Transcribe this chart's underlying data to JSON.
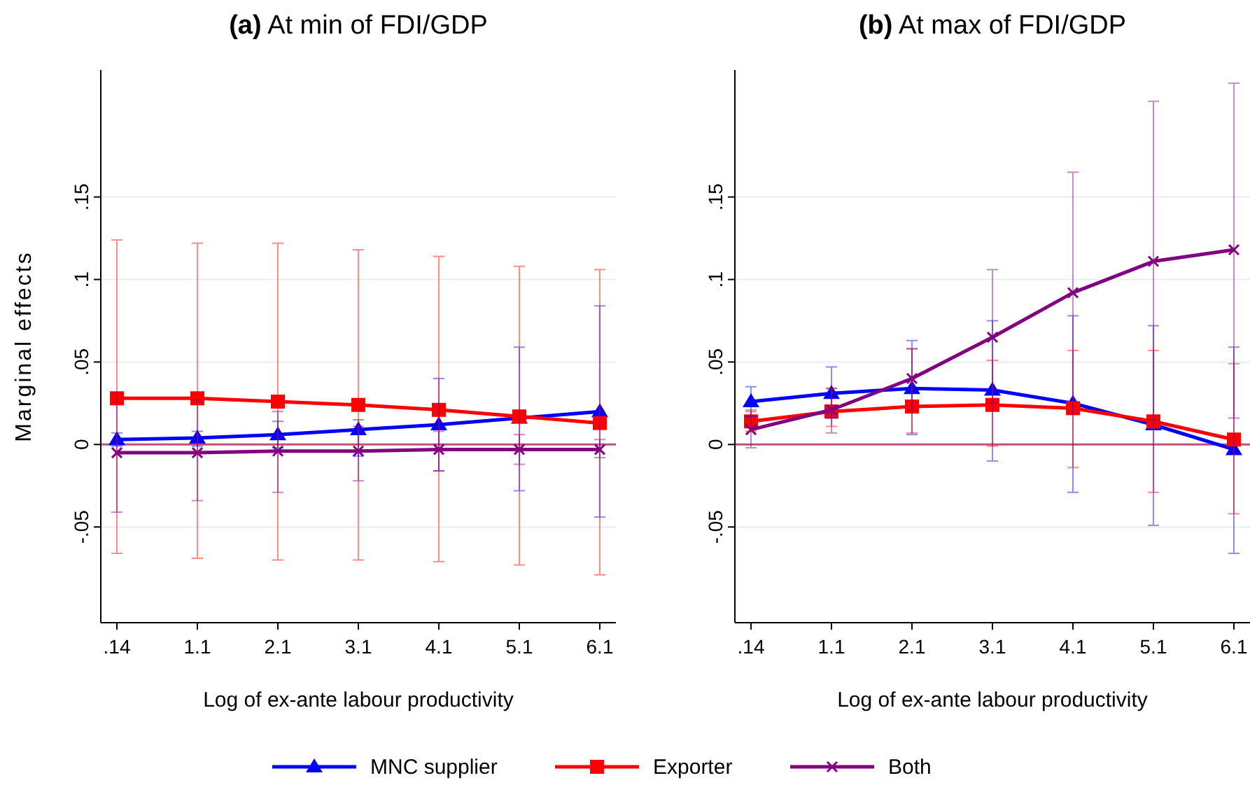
{
  "chart_data": [
    {
      "type": "line",
      "title": "(a) At min of FDI/GDP",
      "xlabel": "Log of ex-ante labour productivity",
      "ylabel": "Marginal effects",
      "categories": [
        ".14",
        "1.1",
        "2.1",
        "3.1",
        "4.1",
        "5.1",
        "6.1"
      ],
      "ylim": [
        -0.108,
        0.227
      ],
      "yticks": [
        {
          "value": -0.05,
          "label": "-.05"
        },
        0,
        {
          "value": 0.05,
          "label": ".05"
        },
        {
          "value": 0.1,
          "label": ".1"
        },
        {
          "value": 0.15,
          "label": ".15"
        }
      ],
      "grid": "y",
      "legend": "bottom",
      "ref_lines": [
        {
          "axis": "y",
          "value": 0,
          "color": "#c0507a"
        }
      ],
      "series": [
        {
          "name": "MNC supplier",
          "color": "#0000ff",
          "marker": "triangle",
          "values": [
            0.003,
            0.004,
            0.006,
            0.009,
            0.012,
            0.016,
            0.02
          ],
          "errors": [
            [
              -0.001,
              0.007
            ],
            [
              -0.001,
              0.008
            ],
            [
              -0.002,
              0.014
            ],
            [
              -0.007,
              0.015
            ],
            [
              -0.016,
              0.04
            ],
            [
              -0.028,
              0.059
            ],
            [
              -0.044,
              0.084
            ]
          ]
        },
        {
          "name": "Exporter",
          "color": "#ff0000",
          "marker": "square",
          "values": [
            0.028,
            0.028,
            0.026,
            0.024,
            0.021,
            0.017,
            0.013
          ],
          "errors": [
            [
              -0.066,
              0.124
            ],
            [
              -0.069,
              0.122
            ],
            [
              -0.07,
              0.122
            ],
            [
              -0.07,
              0.118
            ],
            [
              -0.071,
              0.114
            ],
            [
              -0.073,
              0.108
            ],
            [
              -0.079,
              0.106
            ]
          ]
        },
        {
          "name": "Both",
          "color": "#800080",
          "marker": "cross",
          "values": [
            -0.005,
            -0.005,
            -0.004,
            -0.004,
            -0.003,
            -0.003,
            -0.003
          ],
          "errors": [
            [
              -0.041,
              0.031
            ],
            [
              -0.034,
              0.027
            ],
            [
              -0.029,
              0.02
            ],
            [
              -0.022,
              0.011
            ],
            [
              -0.016,
              0.008
            ],
            [
              -0.012,
              0.006
            ],
            [
              -0.008,
              0.003
            ]
          ]
        }
      ]
    },
    {
      "type": "line",
      "title": "(b) At max of FDI/GDP",
      "xlabel": "Log of ex-ante labour productivity",
      "categories": [
        ".14",
        "1.1",
        "2.1",
        "3.1",
        "4.1",
        "5.1",
        "6.1"
      ],
      "ylim": [
        -0.108,
        0.227
      ],
      "yticks": [
        {
          "value": -0.05,
          "label": "-.05"
        },
        0,
        {
          "value": 0.05,
          "label": ".05"
        },
        {
          "value": 0.1,
          "label": ".1"
        },
        {
          "value": 0.15,
          "label": ".15"
        }
      ],
      "grid": "y",
      "ref_lines": [
        {
          "axis": "y",
          "value": 0,
          "color": "#c0507a"
        }
      ],
      "series": [
        {
          "name": "MNC supplier",
          "color": "#0000ff",
          "marker": "triangle",
          "values": [
            0.026,
            0.031,
            0.034,
            0.033,
            0.025,
            0.012,
            -0.003
          ],
          "errors": [
            [
              0.017,
              0.035
            ],
            [
              0.016,
              0.047
            ],
            [
              0.006,
              0.063
            ],
            [
              -0.01,
              0.075
            ],
            [
              -0.029,
              0.078
            ],
            [
              -0.049,
              0.072
            ],
            [
              -0.066,
              0.059
            ]
          ]
        },
        {
          "name": "Exporter",
          "color": "#ff0000",
          "marker": "square",
          "values": [
            0.014,
            0.02,
            0.023,
            0.024,
            0.022,
            0.014,
            0.003
          ],
          "errors": [
            [
              0.008,
              0.021
            ],
            [
              0.011,
              0.034
            ],
            [
              0.007,
              0.058
            ],
            [
              -0.001,
              0.051
            ],
            [
              -0.014,
              0.057
            ],
            [
              -0.029,
              0.057
            ],
            [
              -0.042,
              0.049
            ]
          ]
        },
        {
          "name": "Both",
          "color": "#800080",
          "marker": "cross",
          "values": [
            0.009,
            0.021,
            0.04,
            0.065,
            0.092,
            0.111,
            0.118
          ],
          "errors": [
            [
              -0.002,
              0.02
            ],
            [
              0.007,
              0.034
            ],
            [
              0.021,
              0.058
            ],
            [
              0.025,
              0.106
            ],
            [
              0.019,
              0.165
            ],
            [
              0.015,
              0.208
            ],
            [
              0.016,
              0.219
            ]
          ]
        }
      ]
    }
  ]
}
